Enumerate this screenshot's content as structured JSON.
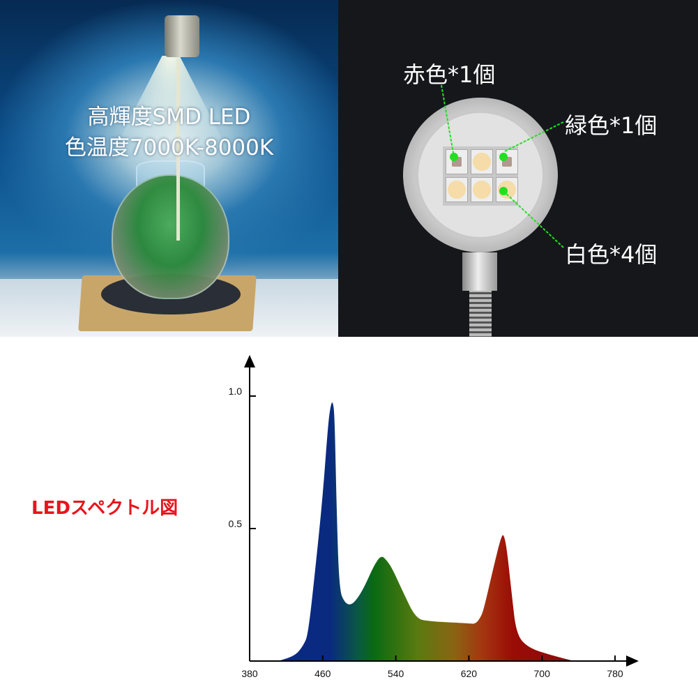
{
  "left_photo": {
    "line1": "高輝度SMD LED",
    "line2": "色温度7000K-8000K"
  },
  "right_photo": {
    "labels": {
      "red": "赤色*1個",
      "green": "緑色*1個",
      "white": "白色*4個"
    },
    "callout_color": "#22e020"
  },
  "chart_data": {
    "type": "area",
    "title": "LEDスペクトル図",
    "xlabel": "",
    "ylabel": "",
    "xlim": [
      380,
      780
    ],
    "ylim": [
      0,
      1.0
    ],
    "x_ticks": [
      "380",
      "460",
      "540",
      "620",
      "700",
      "780"
    ],
    "y_ticks": [
      "1.0",
      "0.5"
    ],
    "grid": false,
    "title_color": "#e8141c",
    "fill": "wavelength spectrum gradient (blue to green to red)",
    "points": [
      [
        411,
        0
      ],
      [
        430,
        0.02
      ],
      [
        439,
        0.06
      ],
      [
        444,
        0.1
      ],
      [
        452,
        0.35
      ],
      [
        460,
        0.62
      ],
      [
        466,
        0.9
      ],
      [
        469,
        0.97
      ],
      [
        471,
        0.98
      ],
      [
        473,
        0.93
      ],
      [
        475,
        0.6
      ],
      [
        478,
        0.27
      ],
      [
        484,
        0.22
      ],
      [
        491,
        0.21
      ],
      [
        499,
        0.24
      ],
      [
        507,
        0.29
      ],
      [
        516,
        0.36
      ],
      [
        524,
        0.4
      ],
      [
        530,
        0.38
      ],
      [
        536,
        0.35
      ],
      [
        548,
        0.26
      ],
      [
        562,
        0.16
      ],
      [
        577,
        0.15
      ],
      [
        606,
        0.145
      ],
      [
        620,
        0.142
      ],
      [
        627,
        0.14
      ],
      [
        632,
        0.16
      ],
      [
        636,
        0.19
      ],
      [
        646,
        0.34
      ],
      [
        656,
        0.48
      ],
      [
        659,
        0.47
      ],
      [
        662,
        0.41
      ],
      [
        667,
        0.25
      ],
      [
        672,
        0.1
      ],
      [
        685,
        0.05
      ],
      [
        709,
        0.023
      ],
      [
        735,
        0
      ]
    ]
  }
}
